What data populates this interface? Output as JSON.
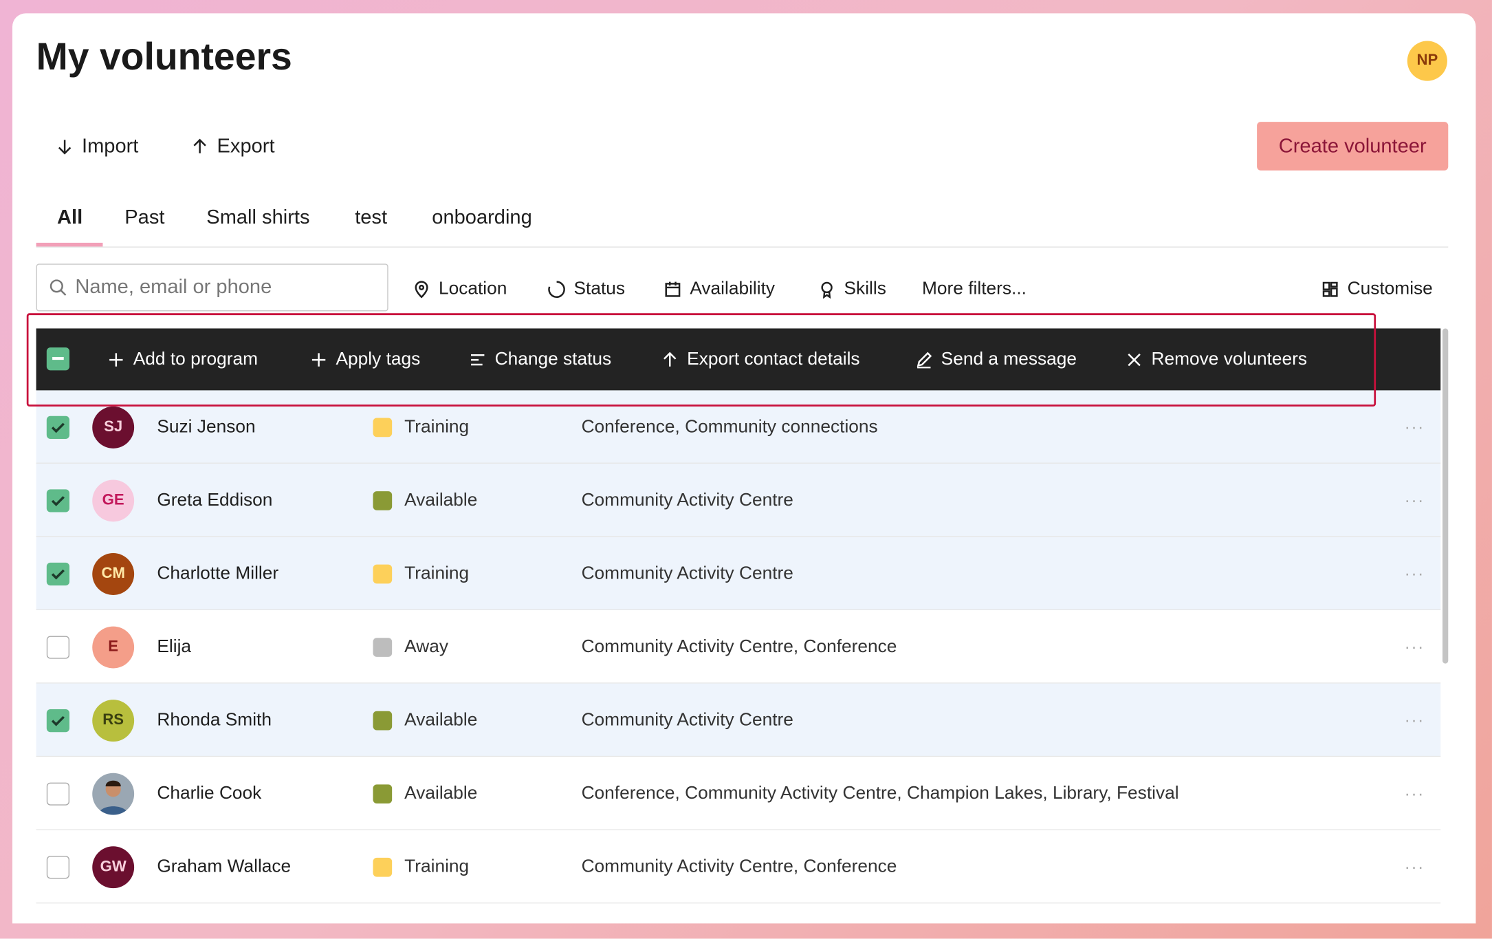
{
  "header": {
    "title": "My volunteers",
    "avatar": "NP"
  },
  "actions": {
    "import": "Import",
    "export": "Export",
    "create": "Create volunteer"
  },
  "tabs": [
    "All",
    "Past",
    "Small shirts",
    "test",
    "onboarding"
  ],
  "filters": {
    "search_placeholder": "Name, email or phone",
    "items": [
      "Location",
      "Status",
      "Availability",
      "Skills",
      "More filters..."
    ],
    "customise": "Customise"
  },
  "bulk_actions": [
    "Add to program",
    "Apply tags",
    "Change status",
    "Export contact details",
    "Send a message",
    "Remove volunteers"
  ],
  "rows": [
    {
      "initials": "SJ",
      "avatar_color": "#6b0f2f",
      "avatar_text": "#f8d0dc",
      "name": "Suzi Jenson",
      "status": "Training",
      "status_color": "#fdd05a",
      "locations": "Conference, Community connections",
      "checked": true
    },
    {
      "initials": "GE",
      "avatar_color": "#f7c9de",
      "avatar_text": "#c2185b",
      "name": "Greta Eddison",
      "status": "Available",
      "status_color": "#8a9a35",
      "locations": "Community Activity Centre",
      "checked": true
    },
    {
      "initials": "CM",
      "avatar_color": "#a4460f",
      "avatar_text": "#ffe9a8",
      "name": "Charlotte Miller",
      "status": "Training",
      "status_color": "#fdd05a",
      "locations": "Community Activity Centre",
      "checked": true
    },
    {
      "initials": "E",
      "avatar_color": "#f49e89",
      "avatar_text": "#8b1a1a",
      "name": "Elija",
      "status": "Away",
      "status_color": "#bdbdbd",
      "locations": "Community Activity Centre, Conference",
      "checked": false
    },
    {
      "initials": "RS",
      "avatar_color": "#b8bf3d",
      "avatar_text": "#3a4010",
      "name": "Rhonda Smith",
      "status": "Available",
      "status_color": "#8a9a35",
      "locations": "Community Activity Centre",
      "checked": true
    },
    {
      "avatar_color": "#9aa7b3",
      "name": "Charlie Cook",
      "status": "Available",
      "status_color": "#8a9a35",
      "locations": "Conference, Community Activity Centre, Champion Lakes, Library, Festival",
      "checked": false
    },
    {
      "initials": "GW",
      "avatar_color": "#6b0f2f",
      "avatar_text": "#f8d0dc",
      "name": "Graham Wallace",
      "status": "Training",
      "status_color": "#fdd05a",
      "locations": "Community Activity Centre, Conference",
      "checked": false
    }
  ]
}
